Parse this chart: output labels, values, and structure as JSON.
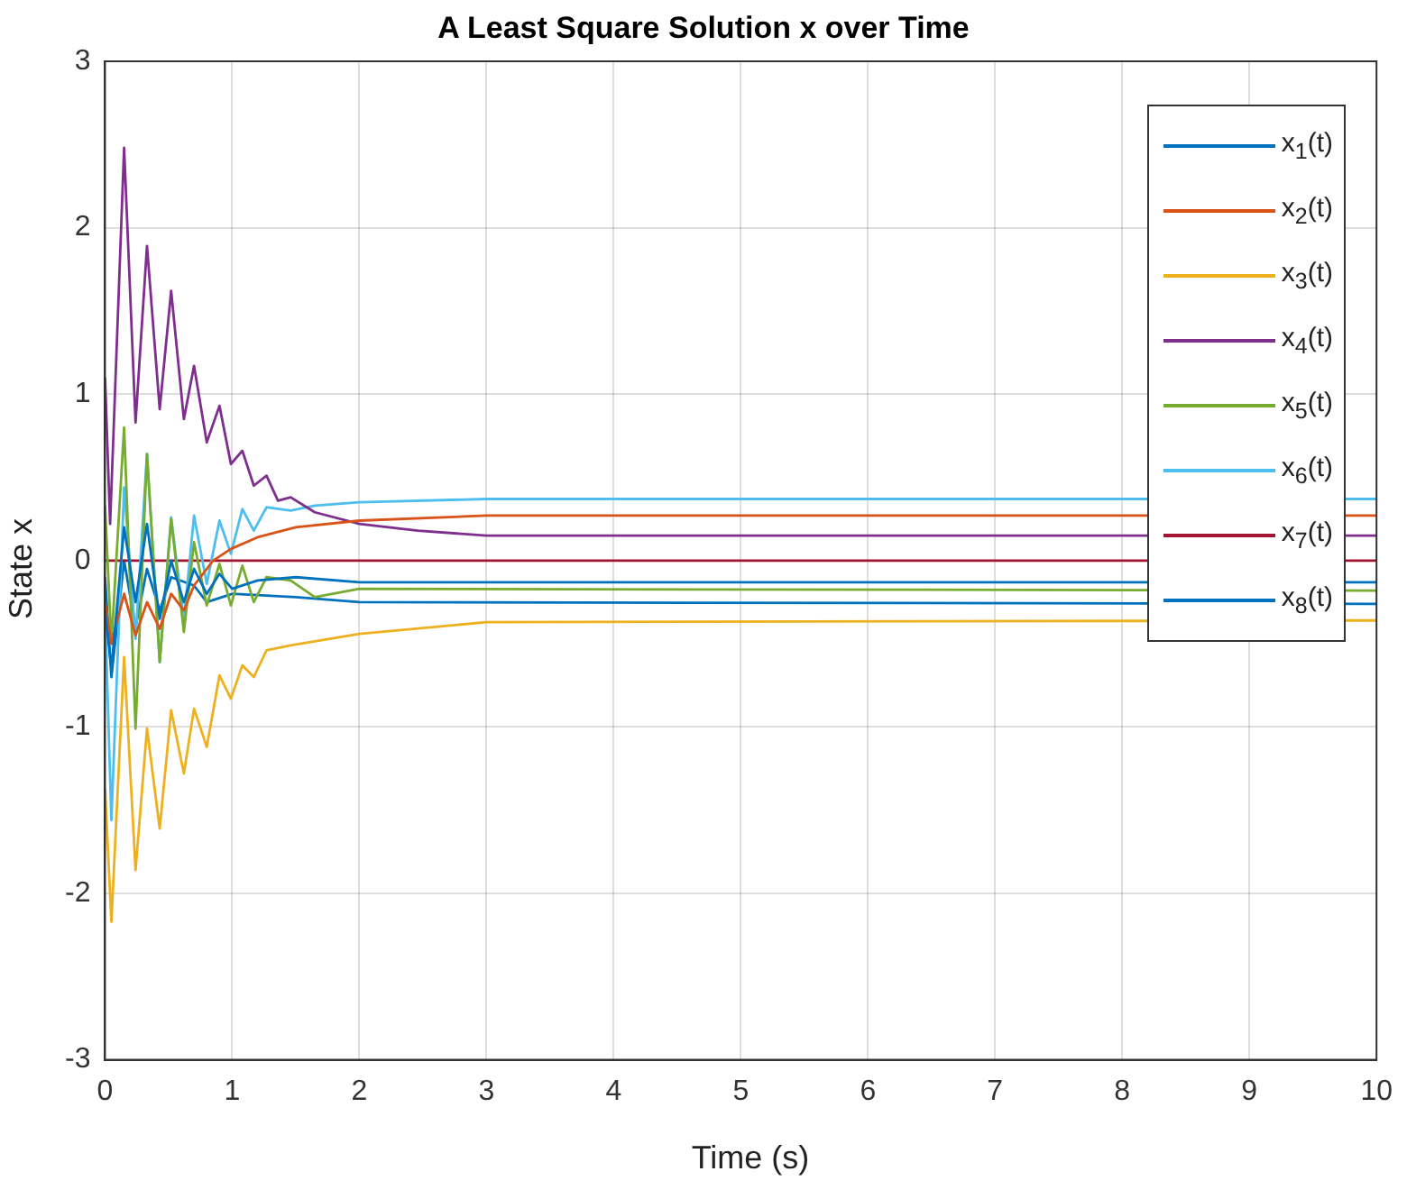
{
  "chart_data": {
    "type": "line",
    "title": "A Least Square Solution x over Time",
    "xlabel": "Time (s)",
    "ylabel": "State x",
    "xlim": [
      0,
      10
    ],
    "xticks": [
      0,
      1,
      2,
      3,
      4,
      5,
      6,
      7,
      8,
      9,
      10
    ],
    "ylim": [
      -3,
      3
    ],
    "yticks": [
      -3,
      -2,
      -1,
      0,
      1,
      2,
      3
    ],
    "grid": true,
    "legend": "top right",
    "marker": "none",
    "line_style": "solid",
    "series": [
      {
        "name": "x$_{1}$(t)",
        "color": "#0072bd",
        "x": [
          0,
          0.05,
          0.15,
          0.24,
          0.33,
          0.43,
          0.52,
          0.62,
          0.7,
          0.8,
          0.9,
          1,
          1.2,
          1.5,
          2,
          3,
          10
        ],
        "values": [
          -0.3,
          -0.65,
          0.2,
          -0.25,
          0.22,
          -0.35,
          0,
          -0.25,
          -0.05,
          -0.2,
          -0.08,
          -0.17,
          -0.12,
          -0.1,
          -0.13,
          -0.13,
          -0.13
        ]
      },
      {
        "name": "x$_{2}$(t)",
        "color": "#d95319",
        "x": [
          0,
          0.05,
          0.15,
          0.24,
          0.33,
          0.43,
          0.52,
          0.62,
          0.7,
          0.85,
          0.99,
          1.2,
          1.5,
          2,
          3,
          10
        ],
        "values": [
          -0.25,
          -0.5,
          -0.2,
          -0.45,
          -0.25,
          -0.41,
          -0.2,
          -0.3,
          -0.15,
          0,
          0.07,
          0.14,
          0.2,
          0.24,
          0.27,
          0.27
        ]
      },
      {
        "name": "x$_{3}$(t)",
        "color": "#edb120",
        "x": [
          0,
          0.05,
          0.15,
          0.24,
          0.33,
          0.43,
          0.52,
          0.62,
          0.7,
          0.8,
          0.9,
          0.99,
          1.08,
          1.17,
          1.27,
          1.46,
          2,
          3,
          10
        ],
        "values": [
          -1.37,
          -2.17,
          -0.58,
          -1.86,
          -1.01,
          -1.61,
          -0.9,
          -1.28,
          -0.89,
          -1.12,
          -0.69,
          -0.83,
          -0.63,
          -0.7,
          -0.54,
          -0.51,
          -0.44,
          -0.37,
          -0.36
        ]
      },
      {
        "name": "x$_{4}$(t)",
        "color": "#7e2f8e",
        "x": [
          0,
          0.04,
          0.15,
          0.24,
          0.33,
          0.43,
          0.52,
          0.62,
          0.7,
          0.8,
          0.9,
          0.99,
          1.08,
          1.17,
          1.27,
          1.36,
          1.46,
          1.65,
          2,
          2.46,
          3,
          10
        ],
        "values": [
          1.1,
          0.22,
          2.48,
          0.83,
          1.89,
          0.91,
          1.62,
          0.85,
          1.17,
          0.71,
          0.93,
          0.58,
          0.66,
          0.45,
          0.51,
          0.36,
          0.38,
          0.29,
          0.22,
          0.18,
          0.15,
          0.15
        ]
      },
      {
        "name": "x$_{5}$(t)",
        "color": "#77ac30",
        "x": [
          0,
          0.05,
          0.15,
          0.24,
          0.33,
          0.43,
          0.52,
          0.62,
          0.7,
          0.8,
          0.9,
          0.99,
          1.08,
          1.17,
          1.27,
          1.46,
          1.65,
          2,
          10
        ],
        "values": [
          0.33,
          -0.5,
          0.8,
          -1.01,
          0.64,
          -0.61,
          0.25,
          -0.43,
          0.11,
          -0.27,
          -0.02,
          -0.27,
          -0.03,
          -0.25,
          -0.1,
          -0.12,
          -0.22,
          -0.17,
          -0.18
        ]
      },
      {
        "name": "x$_{6}$(t)",
        "color": "#4dbeee",
        "x": [
          0,
          0.05,
          0.15,
          0.24,
          0.33,
          0.43,
          0.52,
          0.62,
          0.7,
          0.8,
          0.9,
          0.99,
          1.08,
          1.17,
          1.27,
          1.46,
          1.65,
          2,
          3,
          10
        ],
        "values": [
          -0.29,
          -1.56,
          0.44,
          -0.47,
          0.64,
          -0.61,
          0.26,
          -0.36,
          0.27,
          -0.14,
          0.24,
          0.04,
          0.31,
          0.18,
          0.32,
          0.3,
          0.33,
          0.35,
          0.37,
          0.37
        ]
      },
      {
        "name": "x$_{7}$(t)",
        "color": "#a2142f",
        "x": [
          0,
          10
        ],
        "values": [
          0,
          0
        ]
      },
      {
        "name": "x$_{8}$(t)",
        "color": "#0072bd",
        "x": [
          0,
          0.05,
          0.15,
          0.24,
          0.33,
          0.43,
          0.52,
          0.7,
          0.8,
          1,
          1.5,
          2,
          10
        ],
        "values": [
          -0.1,
          -0.7,
          0,
          -0.4,
          -0.05,
          -0.3,
          -0.1,
          -0.15,
          -0.25,
          -0.2,
          -0.22,
          -0.25,
          -0.26
        ]
      }
    ]
  }
}
